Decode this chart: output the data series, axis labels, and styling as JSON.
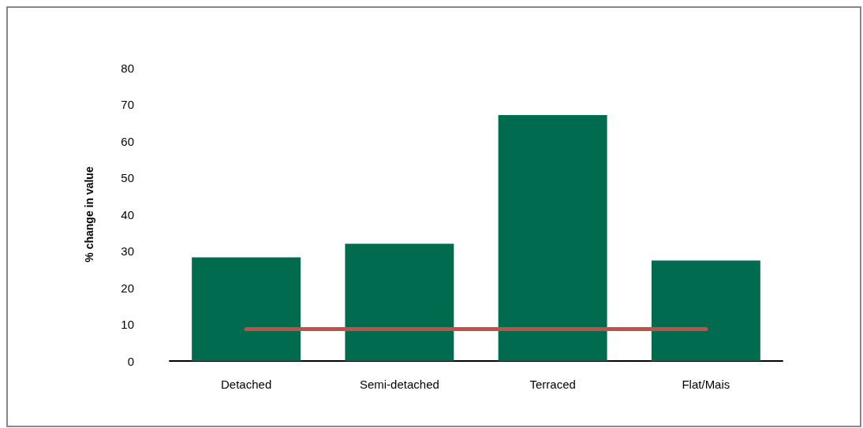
{
  "chart_data": {
    "type": "bar",
    "ylabel": "% change in value",
    "categories": [
      "Detached",
      "Semi-detached",
      "Terraced",
      "Flat/Mais"
    ],
    "series": [
      {
        "type": "bar",
        "color": "#006b4e",
        "values": [
          28.3,
          32,
          67.1,
          27.4
        ]
      },
      {
        "type": "line",
        "color": "#c0504d",
        "values": [
          8.7,
          8.7,
          8.7,
          8.7
        ]
      }
    ],
    "ylim": [
      0,
      80
    ],
    "yticks": [
      0,
      10,
      20,
      30,
      40,
      50,
      60,
      70,
      80
    ],
    "grid": false,
    "marker": "none"
  }
}
